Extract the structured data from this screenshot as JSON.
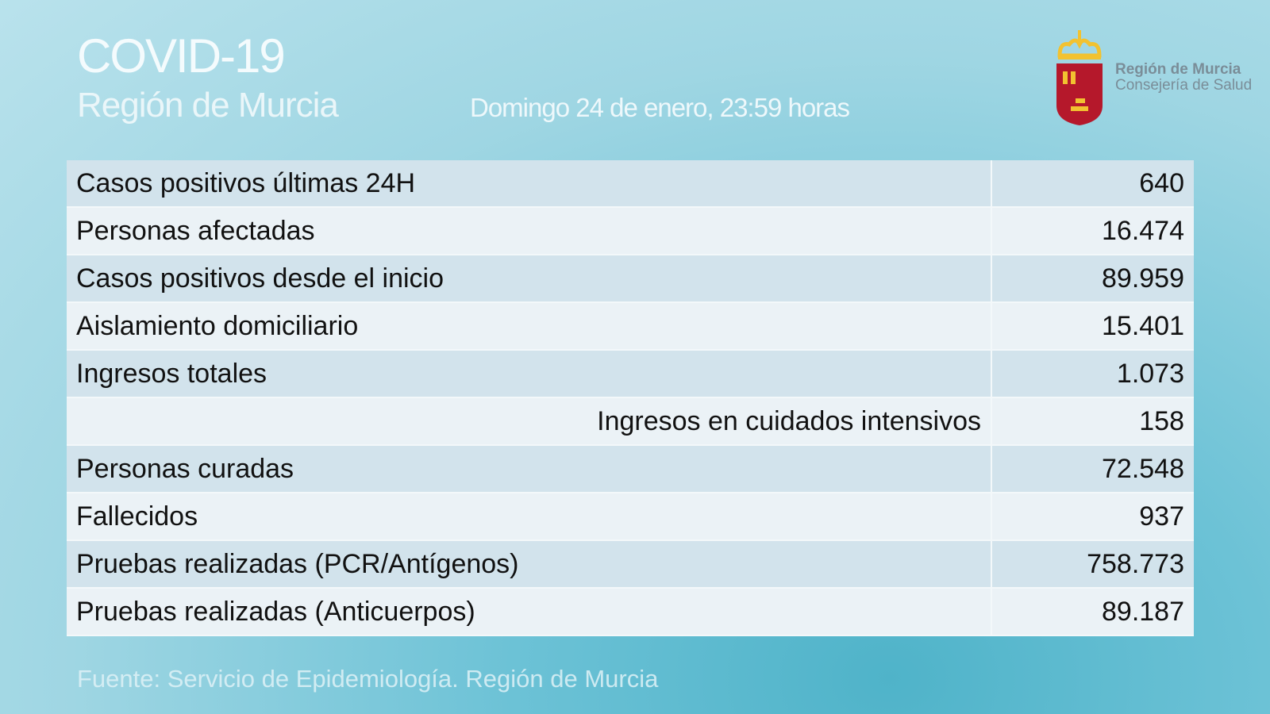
{
  "header": {
    "title": "COVID-19",
    "subtitle": "Región de Murcia",
    "date": "Domingo 24 de enero, 23:59 horas"
  },
  "logo": {
    "line1": "Región de Murcia",
    "line2": "Consejería de Salud",
    "colors": {
      "shield": "#b5182b",
      "crown": "#f2c230"
    }
  },
  "rows": [
    {
      "label": "Casos positivos últimas 24H",
      "value": "640"
    },
    {
      "label": "Personas afectadas",
      "value": "16.474"
    },
    {
      "label": "Casos positivos desde el inicio",
      "value": "89.959"
    },
    {
      "label": "Aislamiento domiciliario",
      "value": "15.401"
    },
    {
      "label": "Ingresos totales",
      "value": "1.073"
    },
    {
      "label": "Ingresos en cuidados intensivos",
      "value": "158"
    },
    {
      "label": "Personas curadas",
      "value": "72.548"
    },
    {
      "label": "Fallecidos",
      "value": "937"
    },
    {
      "label": "Pruebas realizadas (PCR/Antígenos)",
      "value": "758.773"
    },
    {
      "label": "Pruebas realizadas (Anticuerpos)",
      "value": "89.187"
    }
  ],
  "footer": {
    "source": "Fuente: Servicio de Epidemiología.  Región de Murcia"
  }
}
